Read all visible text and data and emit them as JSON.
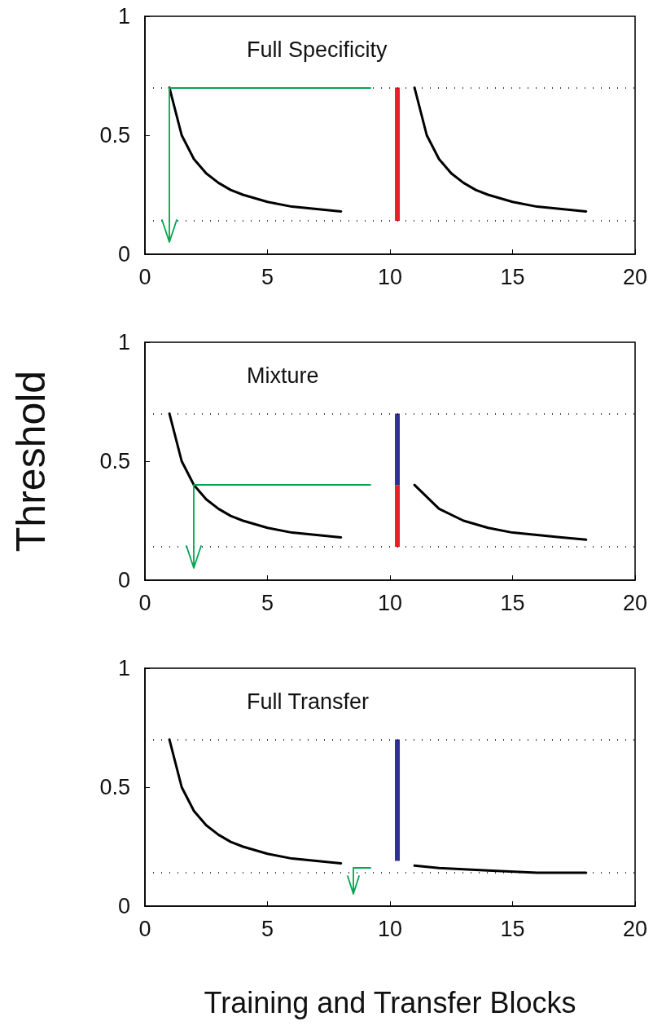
{
  "chart_data": [
    {
      "type": "line",
      "title": "Full Specificity",
      "xlim": [
        0,
        20
      ],
      "xticks": [
        0,
        5,
        10,
        15,
        20
      ],
      "ylim": [
        0,
        1
      ],
      "yticks": [
        0,
        0.5,
        1
      ],
      "grid": false,
      "marker": "none",
      "line_style": "solid",
      "ref_lines": [
        {
          "axis": "y",
          "value": 0.7,
          "color": "#000000",
          "line_style": "dotted"
        },
        {
          "axis": "y",
          "value": 0.14,
          "color": "#000000",
          "line_style": "dotted"
        }
      ],
      "series": [
        {
          "color": "#000000",
          "x": [
            1,
            1.5,
            2,
            2.5,
            3,
            3.5,
            4,
            5,
            6,
            7,
            8
          ],
          "values": [
            0.7,
            0.5,
            0.4,
            0.34,
            0.3,
            0.27,
            0.25,
            0.22,
            0.2,
            0.19,
            0.18
          ]
        },
        {
          "color": "#000000",
          "x": [
            11,
            11.5,
            12,
            12.5,
            13,
            13.5,
            14,
            15,
            16,
            17,
            18
          ],
          "values": [
            0.7,
            0.5,
            0.4,
            0.34,
            0.3,
            0.27,
            0.25,
            0.22,
            0.2,
            0.19,
            0.18
          ]
        },
        {
          "color": "#e8202a",
          "x": [
            10.3,
            10.3
          ],
          "values": [
            0.14,
            0.7
          ]
        }
      ]
    },
    {
      "type": "line",
      "title": "Mixture",
      "ylabel": "Threshold",
      "xlim": [
        0,
        20
      ],
      "xticks": [
        0,
        5,
        10,
        15,
        20
      ],
      "ylim": [
        0,
        1
      ],
      "yticks": [
        0,
        0.5,
        1
      ],
      "grid": false,
      "marker": "none",
      "line_style": "solid",
      "ref_lines": [
        {
          "axis": "y",
          "value": 0.7,
          "color": "#000000",
          "line_style": "dotted"
        },
        {
          "axis": "y",
          "value": 0.14,
          "color": "#000000",
          "line_style": "dotted"
        }
      ],
      "series": [
        {
          "color": "#000000",
          "x": [
            1,
            1.5,
            2,
            2.5,
            3,
            3.5,
            4,
            5,
            6,
            7,
            8
          ],
          "values": [
            0.7,
            0.5,
            0.4,
            0.34,
            0.3,
            0.27,
            0.25,
            0.22,
            0.2,
            0.19,
            0.18
          ]
        },
        {
          "color": "#000000",
          "x": [
            11,
            12,
            13,
            14,
            15,
            16,
            17,
            18
          ],
          "values": [
            0.4,
            0.3,
            0.25,
            0.22,
            0.2,
            0.19,
            0.18,
            0.17
          ]
        },
        {
          "color": "#e8202a",
          "x": [
            10.3,
            10.3
          ],
          "values": [
            0.14,
            0.4
          ]
        },
        {
          "color": "#2e3192",
          "x": [
            10.3,
            10.3
          ],
          "values": [
            0.4,
            0.7
          ]
        }
      ]
    },
    {
      "type": "line",
      "title": "Full Transfer",
      "xlabel": "Training and Transfer Blocks",
      "xlim": [
        0,
        20
      ],
      "xticks": [
        0,
        5,
        10,
        15,
        20
      ],
      "ylim": [
        0,
        1
      ],
      "yticks": [
        0,
        0.5,
        1
      ],
      "grid": false,
      "marker": "none",
      "line_style": "solid",
      "ref_lines": [
        {
          "axis": "y",
          "value": 0.7,
          "color": "#000000",
          "line_style": "dotted"
        },
        {
          "axis": "y",
          "value": 0.14,
          "color": "#000000",
          "line_style": "dotted"
        }
      ],
      "series": [
        {
          "color": "#000000",
          "x": [
            1,
            1.5,
            2,
            2.5,
            3,
            3.5,
            4,
            5,
            6,
            7,
            8
          ],
          "values": [
            0.7,
            0.5,
            0.4,
            0.34,
            0.3,
            0.27,
            0.25,
            0.22,
            0.2,
            0.19,
            0.18
          ]
        },
        {
          "color": "#000000",
          "x": [
            11,
            12,
            14,
            16,
            18
          ],
          "values": [
            0.17,
            0.16,
            0.15,
            0.14,
            0.14
          ]
        },
        {
          "color": "#2e3192",
          "x": [
            10.3,
            10.3
          ],
          "values": [
            0.19,
            0.7
          ]
        }
      ]
    }
  ]
}
